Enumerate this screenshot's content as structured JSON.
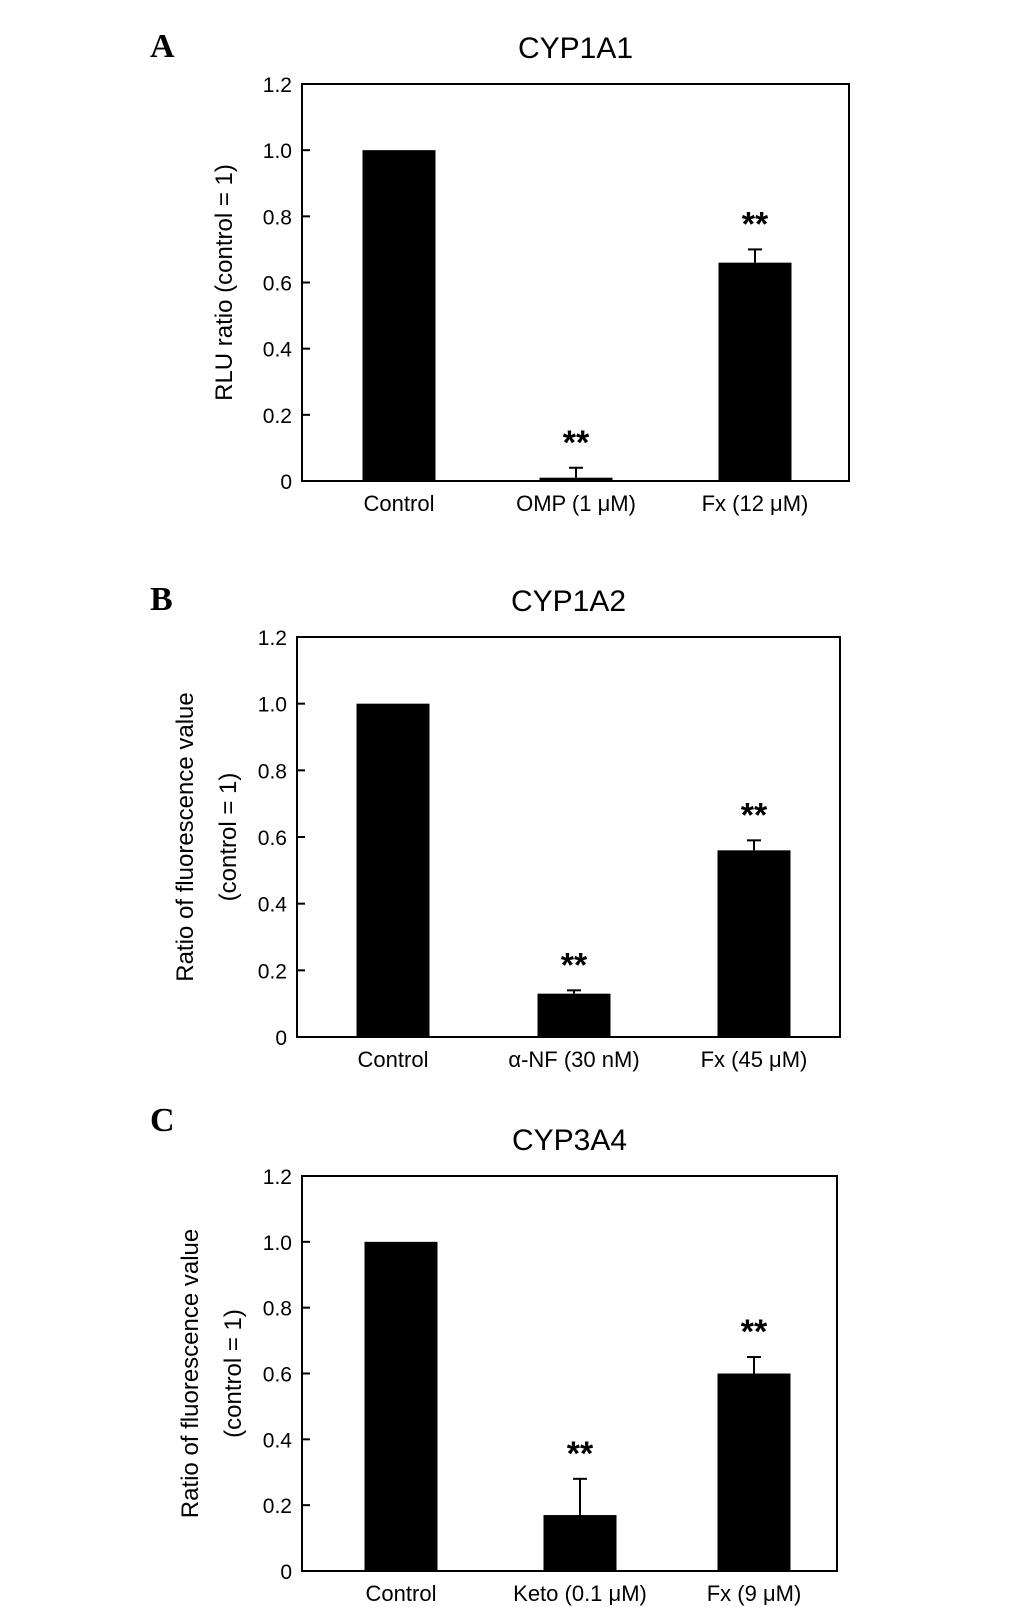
{
  "figure": {
    "panels": [
      {
        "letter": "A"
      },
      {
        "letter": "B"
      },
      {
        "letter": "C"
      }
    ]
  },
  "chart_data": [
    {
      "type": "bar",
      "title": "CYP1A1",
      "xlabel": "",
      "ylabel": [
        "RLU ratio (control = 1)"
      ],
      "ylim": [
        0,
        1.2
      ],
      "yticks": [
        "0",
        "0.2",
        "0.4",
        "0.6",
        "0.8",
        "1.0",
        "1.2"
      ],
      "categories": [
        "Control",
        "OMP (1 μM)",
        "Fx (12 μM)"
      ],
      "values": [
        1.0,
        0.01,
        0.66
      ],
      "errors": [
        0.0,
        0.03,
        0.04
      ],
      "significance": [
        "",
        "**",
        "**"
      ],
      "grid": false,
      "bar_color": "#000000"
    },
    {
      "type": "bar",
      "title": "CYP1A2",
      "xlabel": "",
      "ylabel": [
        "Ratio of fluorescence value",
        "(control = 1)"
      ],
      "ylim": [
        0,
        1.2
      ],
      "yticks": [
        "0",
        "0.2",
        "0.4",
        "0.6",
        "0.8",
        "1.0",
        "1.2"
      ],
      "categories": [
        "Control",
        "α-NF (30 nM)",
        "Fx (45 μM)"
      ],
      "values": [
        1.0,
        0.13,
        0.56
      ],
      "errors": [
        0.0,
        0.01,
        0.03
      ],
      "significance": [
        "",
        "**",
        "**"
      ],
      "grid": false,
      "bar_color": "#000000"
    },
    {
      "type": "bar",
      "title": "CYP3A4",
      "xlabel": "",
      "ylabel": [
        "Ratio of fluorescence value",
        "(control = 1)"
      ],
      "ylim": [
        0,
        1.2
      ],
      "yticks": [
        "0",
        "0.2",
        "0.4",
        "0.6",
        "0.8",
        "1.0",
        "1.2"
      ],
      "categories": [
        "Control",
        "Keto (0.1 μM)",
        "Fx (9 μM)"
      ],
      "values": [
        1.0,
        0.17,
        0.6
      ],
      "errors": [
        0.0,
        0.11,
        0.05
      ],
      "significance": [
        "",
        "**",
        "**"
      ],
      "grid": false,
      "bar_color": "#000000"
    }
  ]
}
